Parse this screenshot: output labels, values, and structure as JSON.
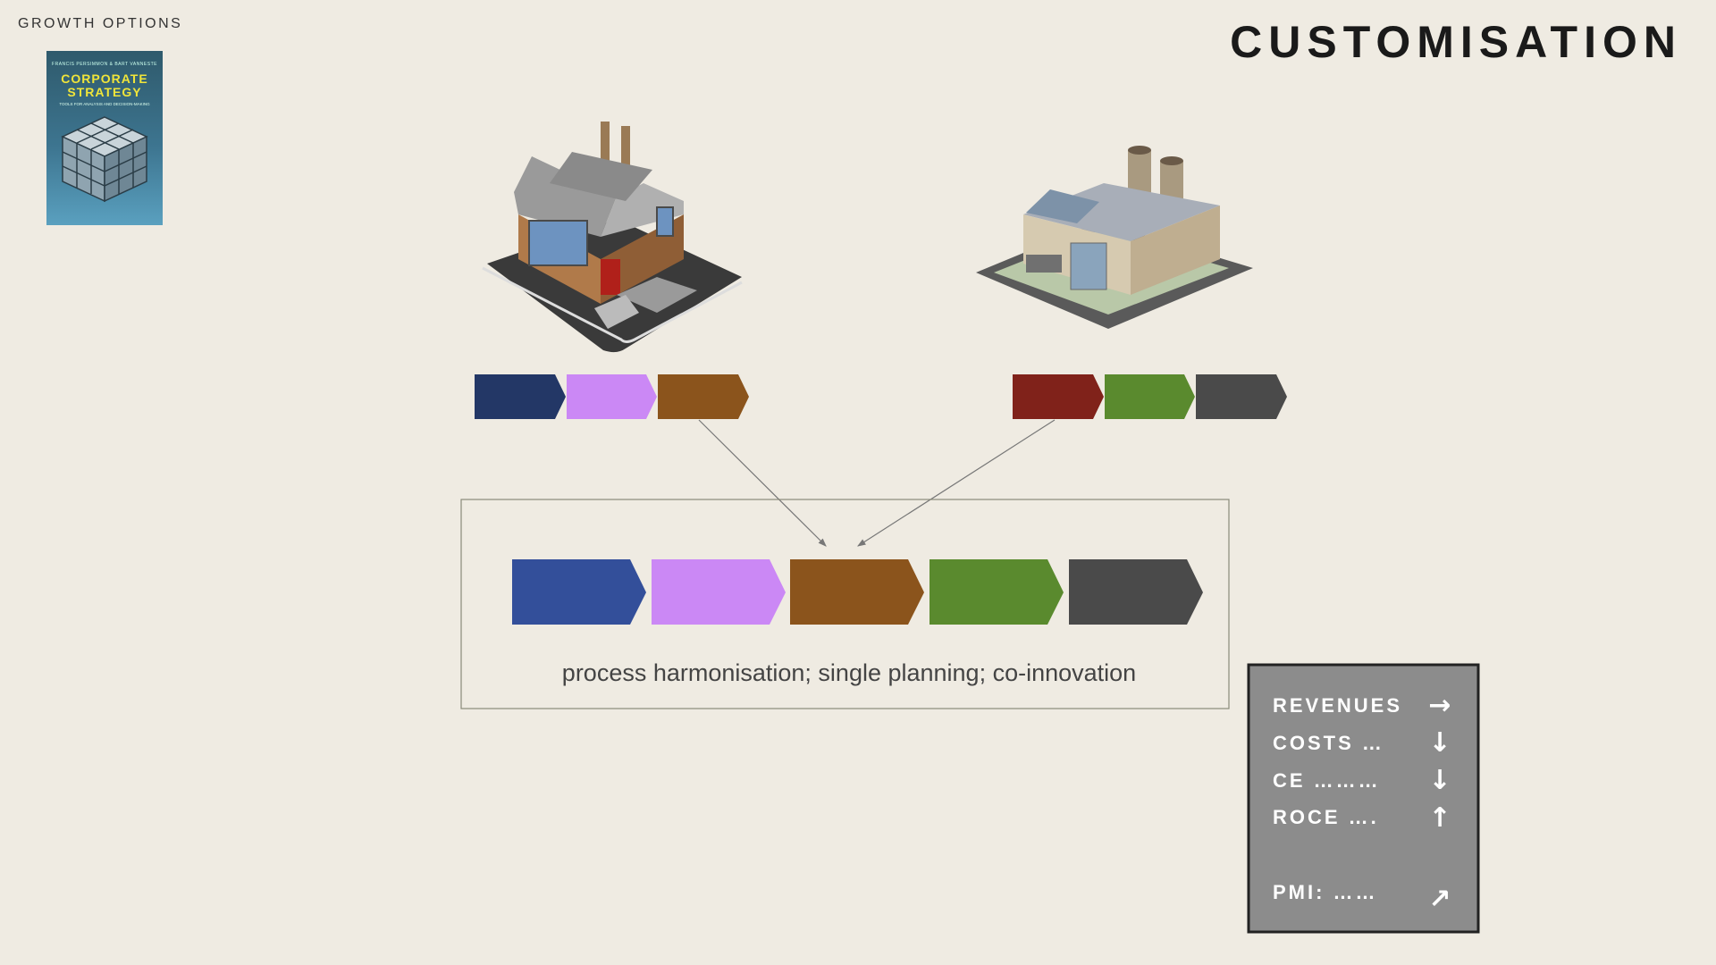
{
  "header": {
    "section": "GROWTH OPTIONS",
    "title": "CUSTOMISATION"
  },
  "book": {
    "authors": "FRANCIS PERSIMMON & BART VANNESTE",
    "title_line1": "CORPORATE",
    "title_line2": "STRATEGY",
    "subtitle": "TOOLS FOR ANALYSIS AND DECISION-MAKING"
  },
  "icons": {
    "left_building": "old-brick-factory-icon",
    "right_building": "modern-factory-icon"
  },
  "chains": {
    "left_colors": [
      "#233766",
      "#cb88f5",
      "#8b541c"
    ],
    "right_colors": [
      "#80221a",
      "#5a8a2e",
      "#4a4a4a"
    ],
    "combined_colors": [
      "#334f9a",
      "#cb88f5",
      "#8b541c",
      "#5a8a2e",
      "#4a4a4a"
    ]
  },
  "combined_box": {
    "caption": "process harmonisation;  single planning; co-innovation"
  },
  "kpi_panel": {
    "rows": [
      {
        "label": "REVENUES",
        "arrow": "→",
        "icon": "arrow-right-icon"
      },
      {
        "label": "COSTS …",
        "arrow": "↓",
        "icon": "arrow-down-icon"
      },
      {
        "label": "CE ………",
        "arrow": "↓",
        "icon": "arrow-down-icon"
      },
      {
        "label": "ROCE ….",
        "arrow": "↑",
        "icon": "arrow-up-icon"
      }
    ],
    "pmi": {
      "label": "PMI: ……",
      "arrow": "↗",
      "icon": "arrow-up-right-icon"
    },
    "bg_color": "#8c8c8c",
    "border_color": "#222222"
  }
}
